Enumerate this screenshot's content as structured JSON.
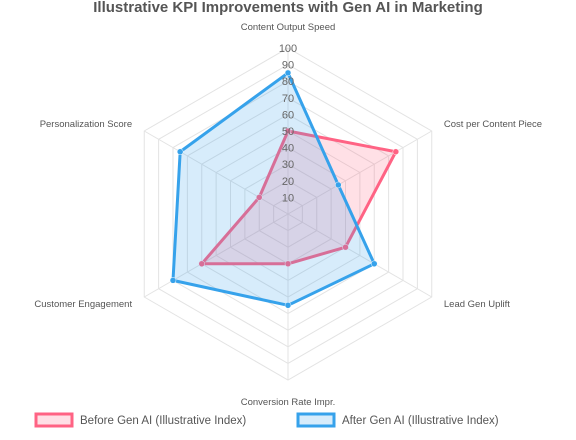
{
  "chart_data": {
    "type": "radar",
    "title": "Illustrative KPI Improvements with Gen AI in Marketing",
    "categories": [
      "Content Output Speed",
      "Cost per Content Piece",
      "Lead Gen Uplift",
      "Conversion Rate Impr.",
      "Customer Engagement",
      "Personalization Score"
    ],
    "ticks": [
      "10",
      "20",
      "30",
      "40",
      "50",
      "60",
      "70",
      "80",
      "90",
      "100"
    ],
    "rlim": [
      0,
      100
    ],
    "grid": true,
    "legend_position": "bottom",
    "series": [
      {
        "name": "Before Gen AI (Illustrative Index)",
        "color": "#ff6384",
        "values": [
          50,
          75,
          40,
          30,
          60,
          20
        ]
      },
      {
        "name": "After Gen AI (Illustrative Index)",
        "color": "#36a2eb",
        "values": [
          85,
          35,
          60,
          55,
          80,
          75
        ]
      }
    ]
  }
}
